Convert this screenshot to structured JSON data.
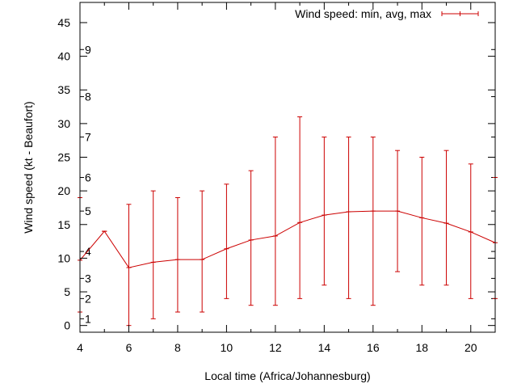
{
  "chart_data": {
    "type": "line",
    "xlabel": "Local time (Africa/Johannesburg)",
    "ylabel": "Wind speed (kt - Beaufort)",
    "xlim": [
      4,
      21
    ],
    "ylim": [
      -1,
      48
    ],
    "xticks": [
      4,
      6,
      8,
      10,
      12,
      14,
      16,
      18,
      20
    ],
    "yticks": [
      0,
      5,
      10,
      15,
      20,
      25,
      30,
      35,
      40,
      45
    ],
    "grid": false,
    "legend": "top-right",
    "beaufort_scale": [
      {
        "label": "1",
        "value": 1
      },
      {
        "label": "2",
        "value": 4
      },
      {
        "label": "3",
        "value": 7
      },
      {
        "label": "4",
        "value": 11
      },
      {
        "label": "5",
        "value": 17
      },
      {
        "label": "6",
        "value": 22
      },
      {
        "label": "7",
        "value": 28
      },
      {
        "label": "8",
        "value": 34
      },
      {
        "label": "9",
        "value": 41
      }
    ],
    "series": [
      {
        "name": "Wind speed: min, avg, max",
        "color": "#cc0000",
        "points": [
          {
            "x": 4,
            "avg": 9.7,
            "min": 2,
            "max": 19
          },
          {
            "x": 5,
            "avg": 14,
            "min": 14,
            "max": 14
          },
          {
            "x": 6,
            "avg": 8.6,
            "min": 0,
            "max": 18
          },
          {
            "x": 7,
            "avg": 9.4,
            "min": 1,
            "max": 20
          },
          {
            "x": 8,
            "avg": 9.8,
            "min": 2,
            "max": 19
          },
          {
            "x": 9,
            "avg": 9.8,
            "min": 2,
            "max": 20
          },
          {
            "x": 10,
            "avg": 11.4,
            "min": 4,
            "max": 21
          },
          {
            "x": 11,
            "avg": 12.7,
            "min": 3,
            "max": 23
          },
          {
            "x": 12,
            "avg": 13.3,
            "min": 3,
            "max": 28
          },
          {
            "x": 13,
            "avg": 15.3,
            "min": 4,
            "max": 31
          },
          {
            "x": 14,
            "avg": 16.4,
            "min": 6,
            "max": 28
          },
          {
            "x": 15,
            "avg": 16.9,
            "min": 4,
            "max": 28
          },
          {
            "x": 16,
            "avg": 17,
            "min": 3,
            "max": 28
          },
          {
            "x": 17,
            "avg": 17,
            "min": 8,
            "max": 26
          },
          {
            "x": 18,
            "avg": 16,
            "min": 6,
            "max": 25
          },
          {
            "x": 19,
            "avg": 15.2,
            "min": 6,
            "max": 26
          },
          {
            "x": 20,
            "avg": 13.9,
            "min": 4,
            "max": 24
          },
          {
            "x": 21,
            "avg": 12.3,
            "min": 4,
            "max": 22
          }
        ]
      }
    ]
  }
}
